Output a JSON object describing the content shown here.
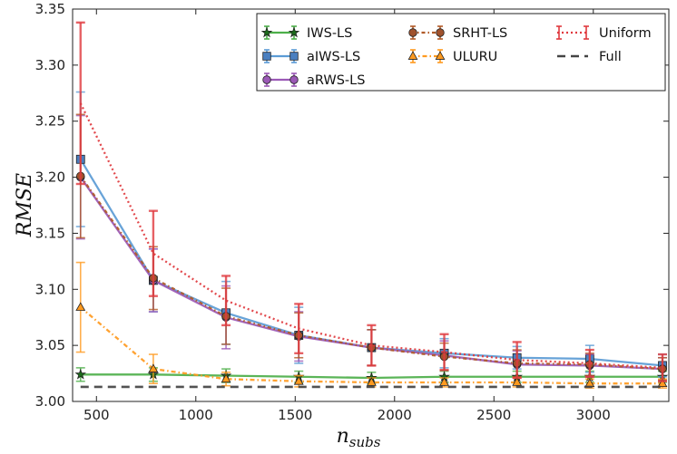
{
  "chart_data": {
    "type": "line",
    "title": "",
    "xlabel": "n",
    "xlabel_sub": "subs",
    "ylabel": "RMSE",
    "xlim": [
      380,
      3380
    ],
    "ylim": [
      3.0,
      3.35
    ],
    "xticks": [
      500,
      1000,
      1500,
      2000,
      2500,
      3000
    ],
    "xtick_labels": [
      "500",
      "1000",
      "1500",
      "2000",
      "2500",
      "3000"
    ],
    "yticks": [
      3.0,
      3.05,
      3.1,
      3.15,
      3.2,
      3.25,
      3.3,
      3.35
    ],
    "ytick_labels": [
      "3.00",
      "3.05",
      "3.10",
      "3.15",
      "3.20",
      "3.25",
      "3.30",
      "3.35"
    ],
    "legend_position": "top-right",
    "x": [
      420,
      786,
      1152,
      1518,
      1884,
      2250,
      2616,
      2982,
      3348
    ],
    "series": [
      {
        "name": "IWS-LS",
        "color": "#4daf4a",
        "dash": "",
        "marker": "star",
        "marker_color": "#1b6d1b",
        "values": [
          3.024,
          3.024,
          3.023,
          3.022,
          3.021,
          3.022,
          3.022,
          3.022,
          3.022
        ],
        "err": [
          0.006,
          0.006,
          0.006,
          0.005,
          0.005,
          0.005,
          0.005,
          0.005,
          0.005
        ]
      },
      {
        "name": "aIWS-LS",
        "color": "#5b9bd5",
        "dash": "",
        "marker": "square",
        "marker_color": "#4a7fc0",
        "values": [
          3.216,
          3.108,
          3.079,
          3.059,
          3.048,
          3.043,
          3.039,
          3.038,
          3.032
        ],
        "err": [
          0.06,
          0.028,
          0.028,
          0.025,
          0.016,
          0.013,
          0.01,
          0.012,
          0.01
        ]
      },
      {
        "name": "aRWS-LS",
        "color": "#9b59b6",
        "dash": "",
        "marker": "circle",
        "marker_color": "#9b59b6",
        "values": [
          3.2,
          3.108,
          3.075,
          3.058,
          3.048,
          3.041,
          3.033,
          3.032,
          3.029
        ],
        "err": [
          0.055,
          0.028,
          0.028,
          0.022,
          0.016,
          0.013,
          0.012,
          0.01,
          0.01
        ]
      },
      {
        "name": "SRHT-LS",
        "color": "#b05a28",
        "dash": "4,3,1.5,3",
        "marker": "circle",
        "marker_color": "#a0522d",
        "values": [
          3.201,
          3.11,
          3.076,
          3.059,
          3.048,
          3.04,
          3.034,
          3.033,
          3.029
        ],
        "err": [
          0.055,
          0.028,
          0.025,
          0.02,
          0.016,
          0.012,
          0.012,
          0.01,
          0.01
        ]
      },
      {
        "name": "ULURU",
        "color": "#ff9a1f",
        "dash": "5,3,1.5,3",
        "marker": "triangle",
        "marker_color": "#ff9a1f",
        "values": [
          3.084,
          3.029,
          3.02,
          3.018,
          3.017,
          3.017,
          3.017,
          3.016,
          3.016
        ],
        "err": [
          0.04,
          0.013,
          0.006,
          0.005,
          0.004,
          0.004,
          0.004,
          0.004,
          0.004
        ]
      },
      {
        "name": "Uniform",
        "color": "#e0393e",
        "dash": "2,3",
        "marker": "none",
        "marker_color": "#e0393e",
        "values": [
          3.266,
          3.132,
          3.09,
          3.065,
          3.05,
          3.044,
          3.037,
          3.034,
          3.03
        ],
        "err": [
          0.072,
          0.038,
          0.022,
          0.022,
          0.018,
          0.016,
          0.016,
          0.012,
          0.012
        ]
      },
      {
        "name": "Full",
        "color": "#444444",
        "dash": "9,6",
        "marker": "none",
        "marker_color": "#444444",
        "values": [
          3.013,
          3.013,
          3.013,
          3.013,
          3.013,
          3.013,
          3.013,
          3.013,
          3.013
        ],
        "err": null
      }
    ]
  }
}
